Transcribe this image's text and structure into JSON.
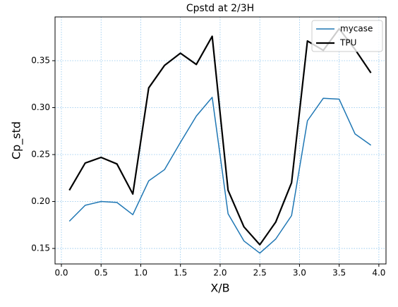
{
  "chart_data": {
    "type": "line",
    "title": "Cpstd at 2/3H",
    "x_label": "X/B",
    "y_label": "Cp_std",
    "x": [
      0.1,
      0.3,
      0.5,
      0.7,
      0.9,
      1.1,
      1.3,
      1.5,
      1.7,
      1.9,
      2.1,
      2.3,
      2.5,
      2.7,
      2.9,
      3.1,
      3.3,
      3.5,
      3.7,
      3.9
    ],
    "series": [
      {
        "name": "mycase",
        "color": "#1f77b4",
        "width": 1.5,
        "values": [
          0.179,
          0.196,
          0.2,
          0.199,
          0.186,
          0.222,
          0.234,
          0.263,
          0.291,
          0.311,
          0.187,
          0.158,
          0.145,
          0.16,
          0.185,
          0.286,
          0.31,
          0.309,
          0.272,
          0.26
        ]
      },
      {
        "name": "TPU",
        "color": "#000000",
        "width": 2.2,
        "values": [
          0.212,
          0.241,
          0.247,
          0.24,
          0.208,
          0.321,
          0.345,
          0.358,
          0.346,
          0.376,
          0.212,
          0.173,
          0.154,
          0.178,
          0.22,
          0.371,
          0.361,
          0.384,
          0.362,
          0.337
        ]
      }
    ],
    "xlim": [
      -0.08,
      4.09
    ],
    "ylim": [
      0.1335,
      0.3966
    ],
    "xticks": [
      {
        "value": 0,
        "label": "0.0"
      },
      0.5,
      {
        "value": 1,
        "label": "1.0"
      },
      1.5,
      {
        "value": 2,
        "label": "2.0"
      },
      2.5,
      {
        "value": 3,
        "label": "3.0"
      },
      3.5,
      {
        "value": 4,
        "label": "4.0"
      }
    ],
    "yticks": [
      0.15,
      {
        "value": 0.2,
        "label": "0.20"
      },
      0.25,
      {
        "value": 0.3,
        "label": "0.30"
      },
      0.35
    ],
    "grid": true,
    "legend": "upper-right"
  }
}
